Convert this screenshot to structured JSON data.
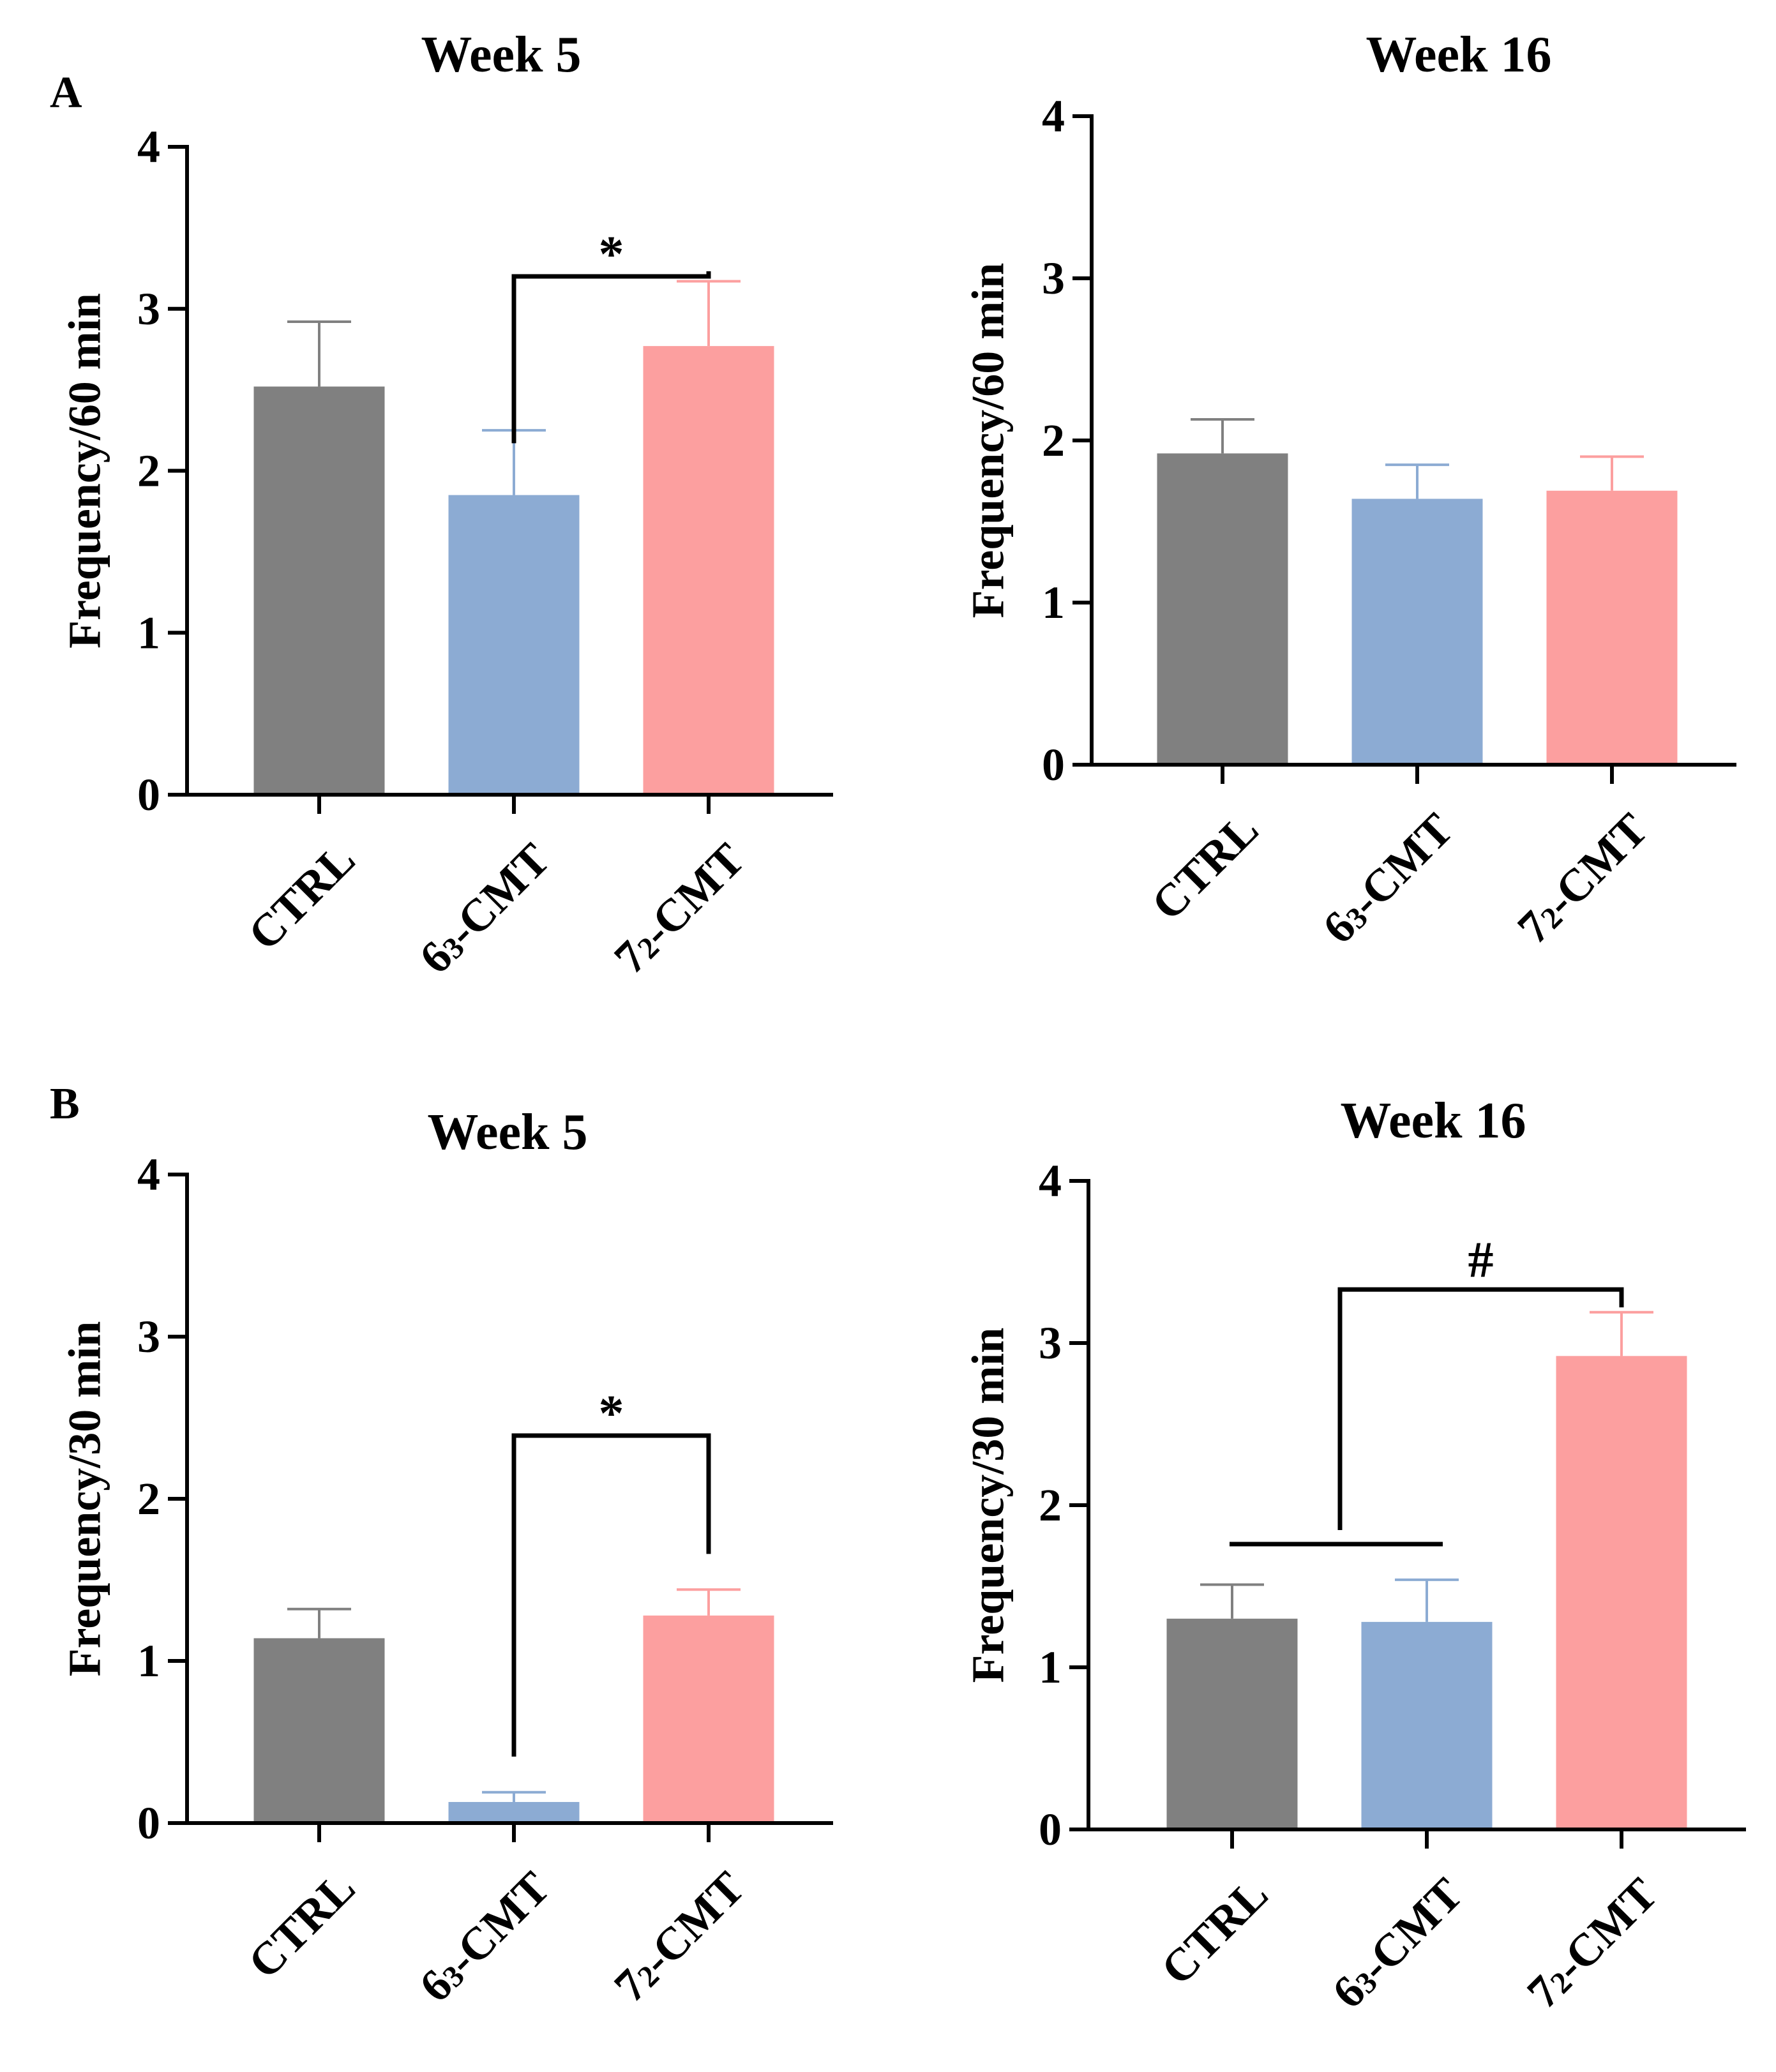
{
  "figure": {
    "panel_labels": [
      "A",
      "B"
    ]
  },
  "colors": {
    "CTRL": "#808080",
    "6_3-CMT": "#8cabd3",
    "7_2-CMT": "#fc9f9f",
    "axis": "#000000"
  },
  "chart_data": [
    {
      "id": "A-week5",
      "panel": "A",
      "type": "bar",
      "title": "Week 5",
      "xlabel": "",
      "ylabel": "Frequency/60 min",
      "ylim": [
        0,
        4
      ],
      "yticks": [
        0,
        1,
        2,
        3,
        4
      ],
      "categories": [
        "CTRL",
        "6_3-CMT",
        "7_2-CMT"
      ],
      "category_labels": [
        {
          "base": "CTRL",
          "sub": ""
        },
        {
          "base": "6",
          "sub": "3",
          "rest": "-CMT"
        },
        {
          "base": "7",
          "sub": "2",
          "rest": "-CMT"
        }
      ],
      "values": [
        2.52,
        1.85,
        2.77
      ],
      "errors": [
        0.4,
        0.4,
        0.4
      ],
      "annotations": [
        {
          "type": "bracket",
          "from": 1,
          "to": 2,
          "label": "*"
        }
      ]
    },
    {
      "id": "A-week16",
      "panel": "",
      "type": "bar",
      "title": "Week 16",
      "xlabel": "",
      "ylabel": "Frequency/60 min",
      "ylim": [
        0,
        4
      ],
      "yticks": [
        0,
        1,
        2,
        3,
        4
      ],
      "categories": [
        "CTRL",
        "6_3-CMT",
        "7_2-CMT"
      ],
      "category_labels": [
        {
          "base": "CTRL",
          "sub": ""
        },
        {
          "base": "6",
          "sub": "3",
          "rest": "-CMT"
        },
        {
          "base": "7",
          "sub": "2",
          "rest": "-CMT"
        }
      ],
      "values": [
        1.92,
        1.64,
        1.69
      ],
      "errors": [
        0.21,
        0.21,
        0.21
      ],
      "annotations": []
    },
    {
      "id": "B-week5",
      "panel": "B",
      "type": "bar",
      "title": "Week 5",
      "xlabel": "",
      "ylabel": "Frequency/30 min",
      "ylim": [
        0,
        4
      ],
      "yticks": [
        0,
        1,
        2,
        3,
        4
      ],
      "categories": [
        "CTRL",
        "6_3-CMT",
        "7_2-CMT"
      ],
      "category_labels": [
        {
          "base": "CTRL",
          "sub": ""
        },
        {
          "base": "6",
          "sub": "3",
          "rest": "-CMT"
        },
        {
          "base": "7",
          "sub": "2",
          "rest": "-CMT"
        }
      ],
      "values": [
        1.14,
        0.13,
        1.28
      ],
      "errors": [
        0.18,
        0.06,
        0.16
      ],
      "annotations": [
        {
          "type": "bracket",
          "from": 1,
          "to": 2,
          "label": "*",
          "y": 2.39,
          "left_bottom": 0.41,
          "right_bottom": 1.66
        }
      ]
    },
    {
      "id": "B-week16",
      "panel": "",
      "type": "bar",
      "title": "Week 16",
      "xlabel": "",
      "ylabel": "Frequency/30 min",
      "ylim": [
        0,
        4
      ],
      "yticks": [
        0,
        1,
        2,
        3,
        4
      ],
      "categories": [
        "CTRL",
        "6_3-CMT",
        "7_2-CMT"
      ],
      "category_labels": [
        {
          "base": "CTRL",
          "sub": ""
        },
        {
          "base": "6",
          "sub": "3",
          "rest": "-CMT"
        },
        {
          "base": "7",
          "sub": "2",
          "rest": "-CMT"
        }
      ],
      "values": [
        1.3,
        1.28,
        2.92
      ],
      "errors": [
        0.21,
        0.26,
        0.27
      ],
      "annotations": [
        {
          "type": "group-bracket",
          "group": [
            0,
            1
          ],
          "to": 2,
          "label": "#",
          "y": 3.33,
          "group_line_y": 1.76,
          "right_bottom": 3.22
        }
      ]
    }
  ]
}
